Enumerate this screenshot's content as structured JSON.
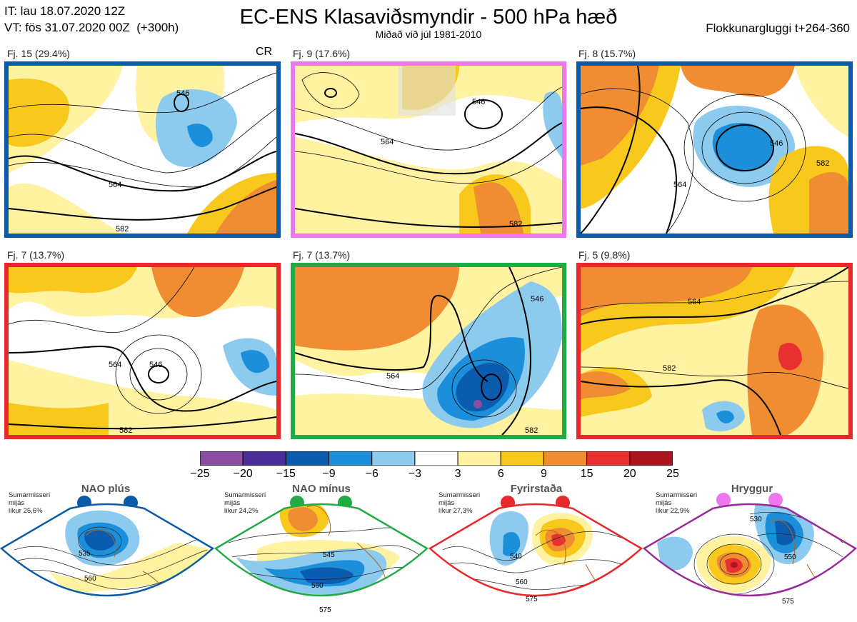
{
  "header": {
    "it": "IT: lau 18.07.2020 12Z",
    "vt": "VT: fös 31.07.2020 00Z  (+300h)",
    "title": "EC-ENS Klasaviðsmyndir - 500 hPa hæð",
    "subtitle": "Miðað við júl 1981-2010",
    "window": "Flokkunargluggi t+264-360"
  },
  "panels": [
    {
      "label": "Fj. 15 (29.4%)",
      "border": "#0a5aa8",
      "extra": "CR",
      "contours": [
        "564",
        "582",
        "546"
      ]
    },
    {
      "label": "Fj. 9 (17.6%)",
      "border": "#ee77ee",
      "contours": [
        "546",
        "564",
        "582"
      ]
    },
    {
      "label": "Fj. 8 (15.7%)",
      "border": "#0a5aa8",
      "contours": [
        "546",
        "564",
        "582"
      ]
    },
    {
      "label": "Fj. 7 (13.7%)",
      "border": "#e8282a",
      "contours": [
        "546",
        "564",
        "582"
      ]
    },
    {
      "label": "Fj. 7 (13.7%)",
      "border": "#22aa44",
      "contours": [
        "564",
        "546",
        "582"
      ]
    },
    {
      "label": "Fj. 5 (9.8%)",
      "border": "#e8282a",
      "contours": [
        "564",
        "582"
      ]
    }
  ],
  "colorbar": {
    "ticks": [
      "−25",
      "−20",
      "−15",
      "−9",
      "−6",
      "−3",
      "3",
      "6",
      "9",
      "15",
      "20",
      "25"
    ],
    "colors": [
      "#8a4ea0",
      "#4a2f9a",
      "#0b5cae",
      "#1c8fda",
      "#8ccaee",
      "#ffffff",
      "#fff2a0",
      "#f8c91c",
      "#f08d32",
      "#e83030",
      "#ae1420"
    ]
  },
  "regimes": [
    {
      "name": "NAO plús",
      "note": "Sumarmisseri\nmijás\nlíkur 25,6%",
      "color": "#0a5aa8",
      "contours": [
        "535",
        "560"
      ]
    },
    {
      "name": "NAO mínus",
      "note": "Sumarmisseri\nmijás\nlíkur 24,2%",
      "color": "#22aa44",
      "contours": [
        "545",
        "560",
        "575"
      ]
    },
    {
      "name": "Fyrirstaða",
      "note": "Sumarmisseri\nmijás\nlíkur 27,3%",
      "color": "#e8282a",
      "contours": [
        "540",
        "560",
        "575"
      ]
    },
    {
      "name": "Hryggur",
      "note": "Sumarmisseri\nmijás\nlíkur 22,9%",
      "color": "#ee77ee",
      "contours": [
        "530",
        "550",
        "575"
      ]
    }
  ]
}
